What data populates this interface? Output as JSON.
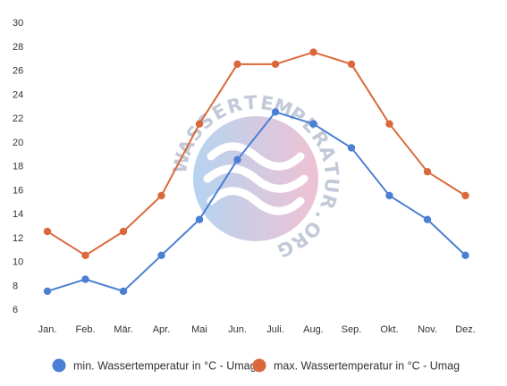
{
  "chart_data": {
    "type": "line",
    "categories": [
      "Jan.",
      "Feb.",
      "Mär.",
      "Apr.",
      "Mai",
      "Jun.",
      "Juli.",
      "Aug.",
      "Sep.",
      "Okt.",
      "Nov.",
      "Dez."
    ],
    "series": [
      {
        "name": "min. Wassertemperatur in °C - Umag",
        "color": "#4a7fd4",
        "values": [
          7.5,
          8.5,
          7.5,
          10.5,
          13.5,
          18.5,
          22.5,
          21.5,
          19.5,
          15.5,
          13.5,
          10.5
        ]
      },
      {
        "name": "max. Wassertemperatur in °C - Umag",
        "color": "#d9693a",
        "values": [
          12.5,
          10.5,
          12.5,
          15.5,
          21.5,
          26.5,
          26.5,
          27.5,
          26.5,
          21.5,
          17.5,
          15.5
        ]
      }
    ],
    "ylim": [
      6,
      30
    ],
    "yticks": [
      6,
      8,
      10,
      12,
      14,
      16,
      18,
      20,
      22,
      24,
      26,
      28,
      30
    ],
    "grid": false,
    "legend": "bottom",
    "title": "",
    "xlabel": "",
    "ylabel": ""
  },
  "watermark": {
    "text": "WASSERTEMPERATUR.ORG",
    "icon": "waves-logo-icon"
  }
}
